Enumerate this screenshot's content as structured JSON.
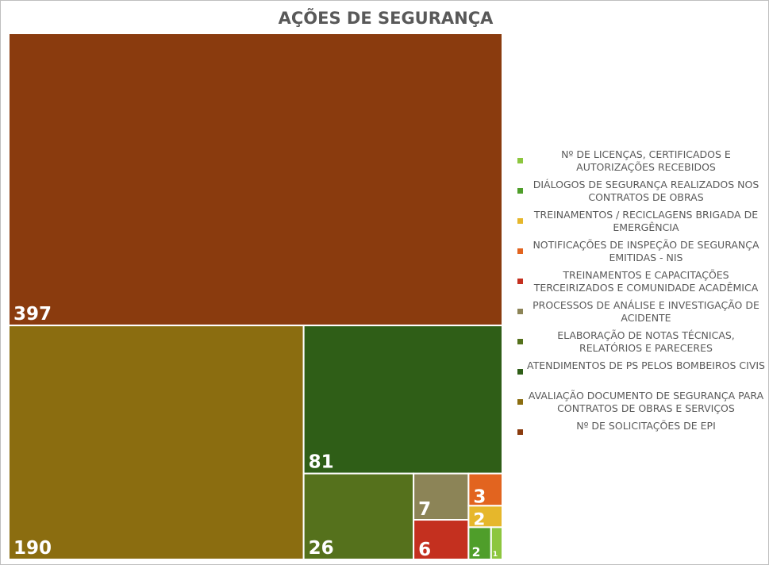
{
  "chart_data": {
    "type": "treemap",
    "title": "AÇÕES DE SEGURANÇA",
    "categories": [
      "Nº DE LICENÇAS, CERTIFICADOS E AUTORIZAÇÕES RECEBIDOS",
      "DIÁLOGOS DE SEGURANÇA REALIZADOS NOS CONTRATOS DE OBRAS",
      "TREINAMENTOS / RECICLAGENS BRIGADA DE EMERGÊNCIA",
      "NOTIFICAÇÕES DE INSPEÇÃO DE SEGURANÇA EMITIDAS - NIS",
      "TREINAMENTOS E CAPACITAÇÕES TERCEIRIZADOS E COMUNIDADE ACADÊMICA",
      "PROCESSOS DE ANÁLISE E INVESTIGAÇÃO DE ACIDENTE",
      "ELABORAÇÃO DE NOTAS TÉCNICAS, RELATÓRIOS E PARECERES",
      "ATENDIMENTOS DE PS PELOS BOMBEIROS CIVIS",
      "AVALIAÇÃO DOCUMENTO DE SEGURANÇA PARA CONTRATOS DE OBRAS E SERVIÇOS",
      "Nº DE SOLICITAÇÕES DE EPI"
    ],
    "values": [
      1,
      2,
      2,
      3,
      6,
      7,
      26,
      81,
      190,
      397
    ],
    "colors": [
      "#8cc63e",
      "#4f9e2a",
      "#e6b72b",
      "#e2641f",
      "#c4301f",
      "#8c8457",
      "#55711c",
      "#2f5e17",
      "#8b6d10",
      "#8a3b0e"
    ],
    "legend": "right"
  }
}
